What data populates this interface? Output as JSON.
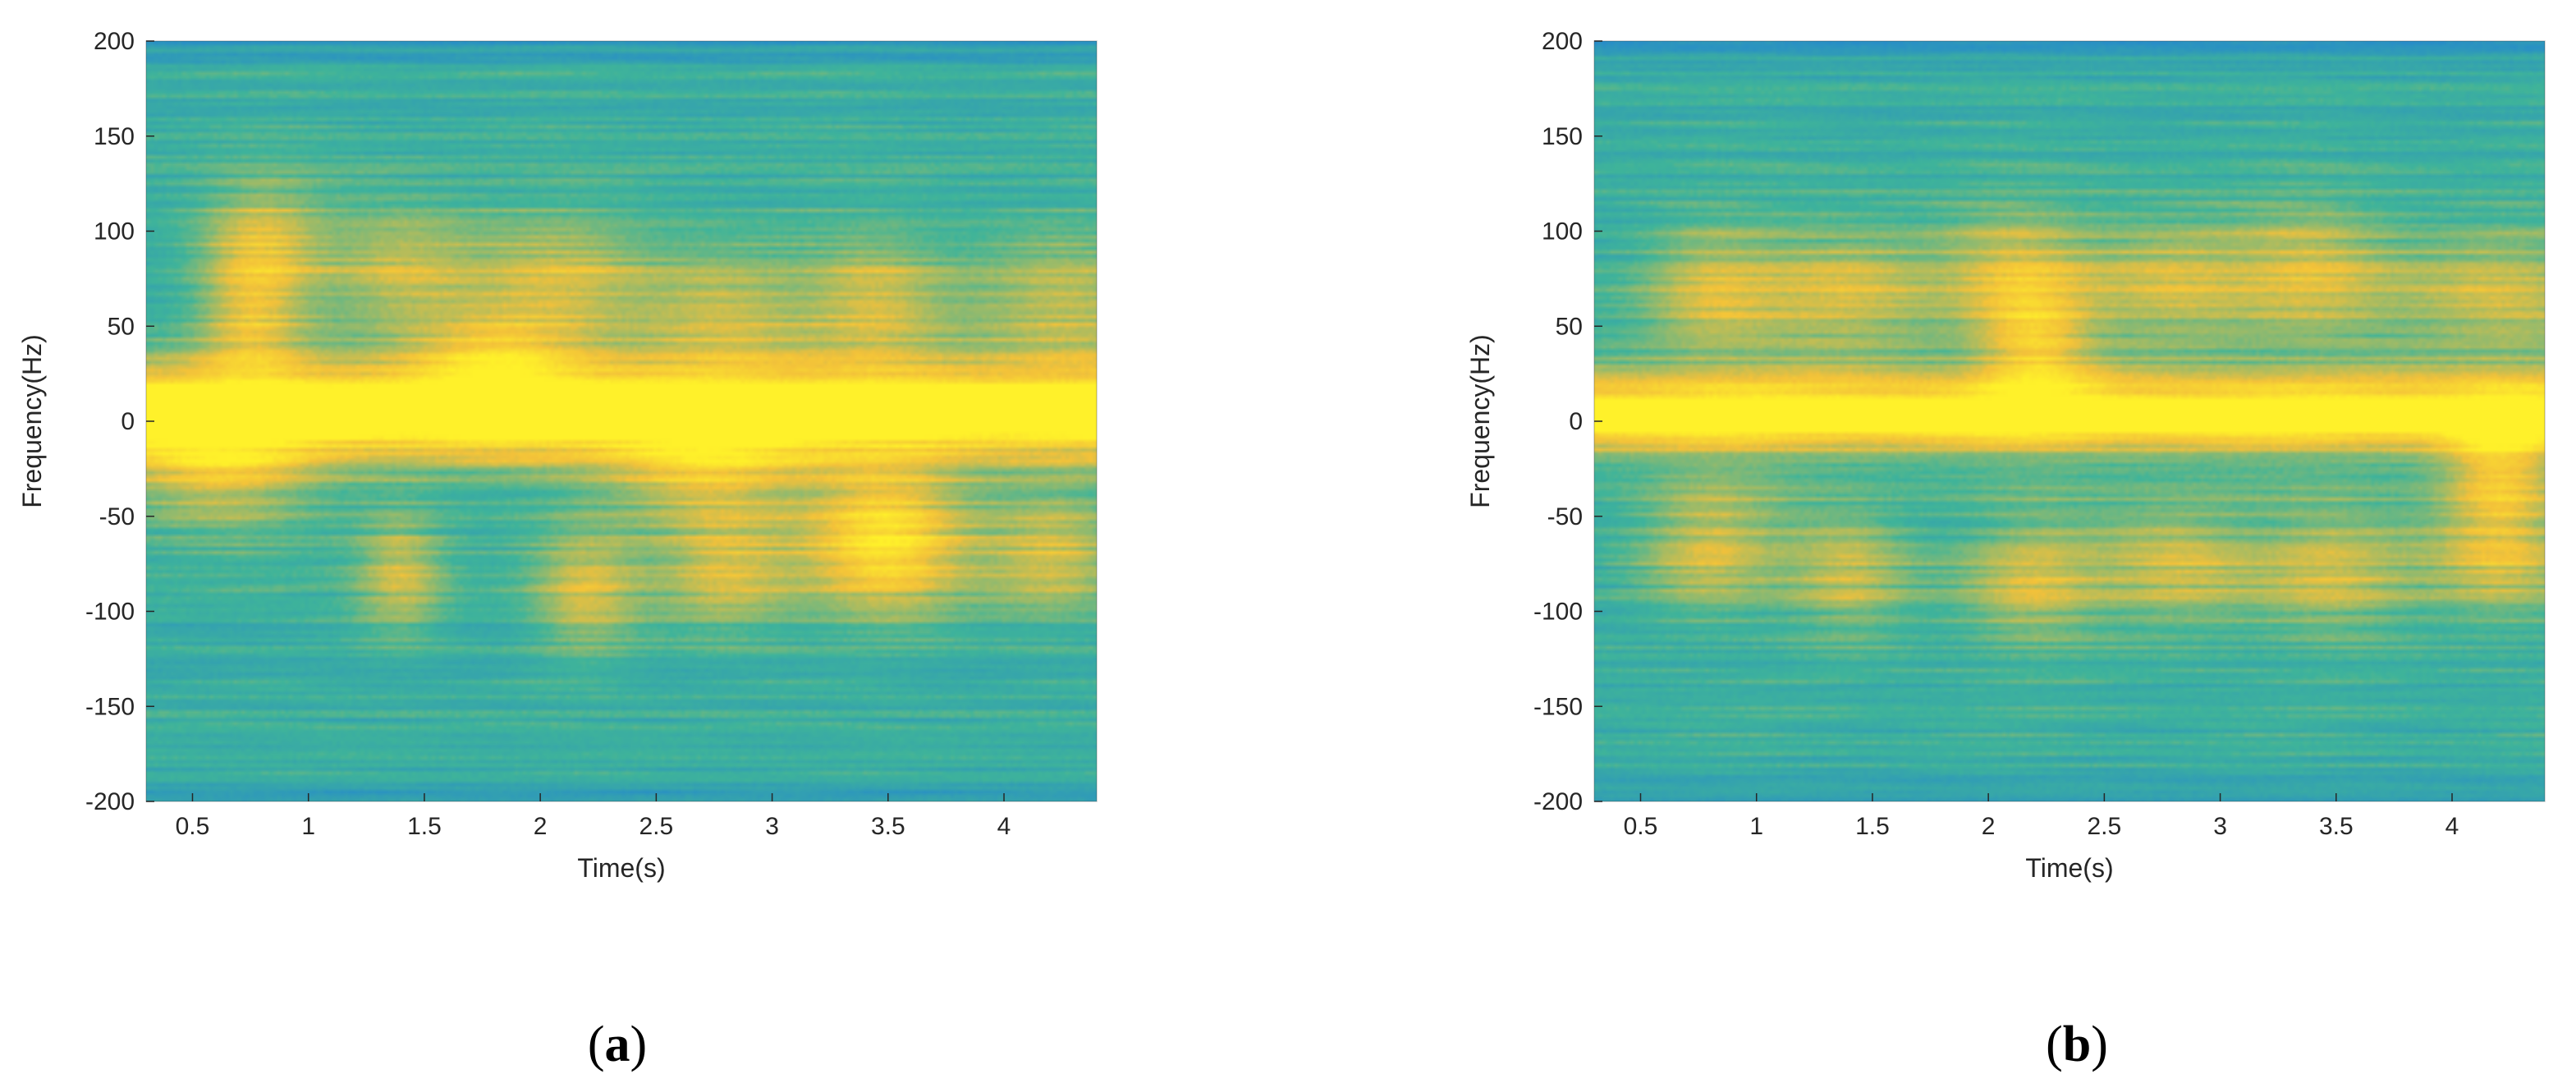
{
  "chart_data": [
    {
      "type": "heatmap",
      "panel_label": "a",
      "xlabel": "Time(s)",
      "ylabel": "Frequency(Hz)",
      "xlim": [
        0.3,
        4.4
      ],
      "ylim": [
        -200,
        200
      ],
      "xticks": [
        "0.5",
        "1",
        "1.5",
        "2",
        "2.5",
        "3",
        "3.5",
        "4"
      ],
      "yticks": [
        "-200",
        "-150",
        "-100",
        "-50",
        "0",
        "50",
        "100",
        "150",
        "200"
      ],
      "colormap": {
        "low": "#1f7fd9",
        "mid": "#3fb49a",
        "high": "#f3c13a",
        "peak": "#fff12a"
      },
      "main_band_hz": 8,
      "blobs": [
        {
          "t": 0.8,
          "f": 95,
          "s": 0.35
        },
        {
          "t": 0.75,
          "f": 55,
          "s": 0.3
        },
        {
          "t": 1.4,
          "f": 80,
          "s": 0.45
        },
        {
          "t": 2.1,
          "f": 75,
          "s": 0.5
        },
        {
          "t": 2.8,
          "f": 60,
          "s": 0.5
        },
        {
          "t": 3.45,
          "f": 65,
          "s": 0.4
        },
        {
          "t": 4.25,
          "f": 65,
          "s": 0.6
        },
        {
          "t": 1.8,
          "f": 30,
          "s": 0.45
        },
        {
          "t": 0.6,
          "f": -25,
          "s": 0.55
        },
        {
          "t": 2.7,
          "f": -25,
          "s": 0.55
        },
        {
          "t": 3.5,
          "f": -50,
          "s": 0.45
        },
        {
          "t": 2.8,
          "f": -80,
          "s": 0.4
        },
        {
          "t": 3.5,
          "f": -75,
          "s": 0.45
        },
        {
          "t": 4.2,
          "f": -70,
          "s": 0.4
        },
        {
          "t": 1.4,
          "f": -80,
          "s": 0.25
        },
        {
          "t": 2.2,
          "f": -90,
          "s": 0.3
        }
      ]
    },
    {
      "type": "heatmap",
      "panel_label": "b",
      "xlabel": "Time(s)",
      "ylabel": "Frequency(Hz)",
      "xlim": [
        0.3,
        4.4
      ],
      "ylim": [
        -200,
        200
      ],
      "xticks": [
        "0.5",
        "1",
        "1.5",
        "2",
        "2.5",
        "3",
        "3.5",
        "4"
      ],
      "yticks": [
        "-200",
        "-150",
        "-100",
        "-50",
        "0",
        "50",
        "100",
        "150",
        "200"
      ],
      "colormap": {
        "low": "#1f7fd9",
        "mid": "#3fb49a",
        "high": "#f3c13a",
        "peak": "#fff12a"
      },
      "main_band_hz": 5,
      "blobs": [
        {
          "t": 0.8,
          "f": 70,
          "s": 0.4
        },
        {
          "t": 1.4,
          "f": 70,
          "s": 0.5
        },
        {
          "t": 2.1,
          "f": 80,
          "s": 0.45
        },
        {
          "t": 2.8,
          "f": 75,
          "s": 0.5
        },
        {
          "t": 3.4,
          "f": 80,
          "s": 0.45
        },
        {
          "t": 4.2,
          "f": 70,
          "s": 0.6
        },
        {
          "t": 2.2,
          "f": 40,
          "s": 0.3
        },
        {
          "t": 0.8,
          "f": -65,
          "s": 0.4
        },
        {
          "t": 1.4,
          "f": -80,
          "s": 0.35
        },
        {
          "t": 2.2,
          "f": -85,
          "s": 0.4
        },
        {
          "t": 2.8,
          "f": -75,
          "s": 0.45
        },
        {
          "t": 3.5,
          "f": -80,
          "s": 0.45
        },
        {
          "t": 4.2,
          "f": -70,
          "s": 0.45
        },
        {
          "t": 4.2,
          "f": -25,
          "s": 0.3
        }
      ]
    }
  ],
  "captions": [
    {
      "open": "(",
      "letter": "a",
      "close": ")"
    },
    {
      "open": "(",
      "letter": "b",
      "close": ")"
    }
  ]
}
